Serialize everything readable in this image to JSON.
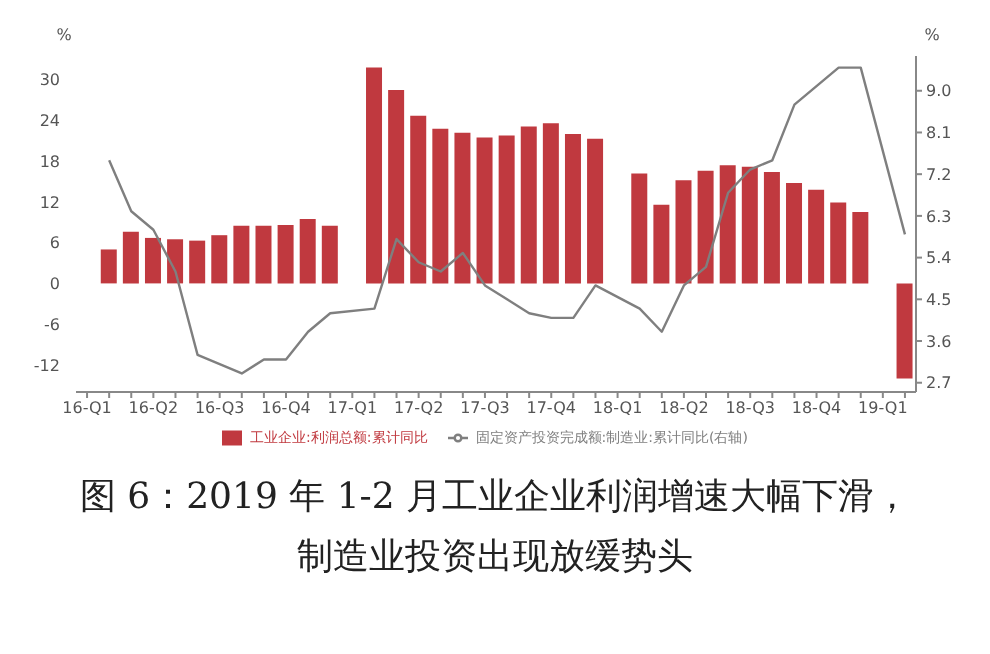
{
  "chart_data": {
    "type": "bar",
    "title": "图 6：2019 年 1-2 月工业企业利润增速大幅下滑，制造业投资出现放缓势头",
    "ylabel": "%",
    "y2label": "%",
    "categories": [
      "16-Q1",
      null,
      null,
      "16-Q2",
      null,
      null,
      "16-Q3",
      null,
      null,
      "16-Q4",
      null,
      null,
      "17-Q1",
      null,
      null,
      "17-Q2",
      null,
      null,
      "17-Q3",
      null,
      null,
      "17-Q4",
      null,
      null,
      "18-Q1",
      null,
      null,
      "18-Q2",
      null,
      null,
      "18-Q3",
      null,
      null,
      "18-Q4",
      null,
      null,
      "19-Q1",
      null
    ],
    "series": [
      {
        "name": "工业企业:利润总额:累计同比",
        "color": "#c0393f",
        "values": [
          null,
          5.0,
          7.6,
          6.7,
          6.5,
          6.3,
          7.1,
          8.5,
          8.5,
          8.6,
          9.5,
          8.5,
          null,
          31.8,
          28.5,
          24.7,
          22.8,
          22.2,
          21.5,
          21.8,
          23.1,
          23.6,
          22.0,
          21.3,
          null,
          16.2,
          11.6,
          15.2,
          16.6,
          17.4,
          17.2,
          16.4,
          14.8,
          13.8,
          11.9,
          10.5,
          null,
          -14.0
        ]
      },
      {
        "name": "固定资产投资完成额:制造业:累计同比(右轴)",
        "type": "line",
        "axis": "y2",
        "color": "#7f7f7f",
        "values": [
          null,
          7.5,
          6.4,
          6.0,
          5.1,
          3.3,
          3.1,
          2.9,
          3.2,
          3.2,
          3.8,
          4.2,
          null,
          4.3,
          5.8,
          5.3,
          5.1,
          5.5,
          4.8,
          4.5,
          4.2,
          4.1,
          4.1,
          4.8,
          null,
          4.3,
          3.8,
          4.8,
          5.2,
          6.8,
          7.3,
          7.5,
          8.7,
          9.1,
          9.5,
          9.5,
          null,
          5.9
        ]
      }
    ],
    "ylim": [
      -16,
      33.5
    ],
    "yticks": [
      -12,
      -6,
      0,
      6,
      12,
      18,
      24,
      30
    ],
    "y2lim": [
      2.5,
      9.75
    ],
    "y2ticks": [
      2.7,
      3.6,
      4.5,
      5.4,
      6.3,
      7.2,
      8.1,
      {
        "value": 9,
        "label": "9.0"
      }
    ],
    "grid": false,
    "legend": "bottom",
    "marker": "none",
    "line_style": "solid"
  }
}
